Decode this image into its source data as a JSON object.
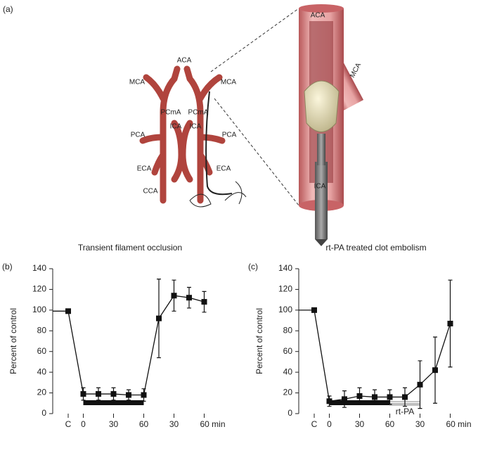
{
  "diagram": {
    "panel_label": "(a)",
    "labels": [
      "ACA",
      "MCA",
      "MCA",
      "PCmA",
      "PCmA",
      "ICA",
      "ICA",
      "PCA",
      "PCA",
      "ECA",
      "ECA",
      "CCA",
      "ACA",
      "MCA",
      "ICA"
    ]
  },
  "chart_data": [
    {
      "type": "line",
      "panel_label": "(b)",
      "title": "Transient filament occlusion",
      "y_label": "Percent of control",
      "categories": [
        "C",
        "0",
        null,
        "30",
        null,
        "60",
        null,
        "30",
        null,
        "60 min"
      ],
      "values": [
        99,
        19,
        19,
        19,
        18,
        18,
        92,
        114,
        112,
        108
      ],
      "errors": [
        0,
        6,
        6,
        6,
        5,
        6,
        38,
        15,
        10,
        10
      ],
      "color": "#111111",
      "ylim": [
        0,
        140
      ],
      "yticks": [
        0,
        20,
        40,
        60,
        80,
        100,
        120,
        140
      ],
      "bars": [
        {
          "from": 1,
          "to": 5
        }
      ]
    },
    {
      "type": "line",
      "panel_label": "(c)",
      "title": "rt-PA treated clot embolism",
      "y_label": "Percent of control",
      "categories": [
        "C",
        "0",
        null,
        "30",
        null,
        "60",
        null,
        "30",
        null,
        "60 min"
      ],
      "values": [
        100,
        12,
        14,
        17,
        16,
        16,
        16,
        28,
        42,
        87
      ],
      "errors": [
        0,
        5,
        8,
        8,
        7,
        7,
        9,
        23,
        32,
        42
      ],
      "color": "#111111",
      "ylim": [
        0,
        140
      ],
      "yticks": [
        0,
        20,
        40,
        60,
        80,
        100,
        120,
        140
      ],
      "bars": [
        {
          "from": 1,
          "to": 5
        },
        {
          "from": 5,
          "to": 7,
          "label": "rt-PA",
          "style": "hatched"
        }
      ]
    }
  ]
}
